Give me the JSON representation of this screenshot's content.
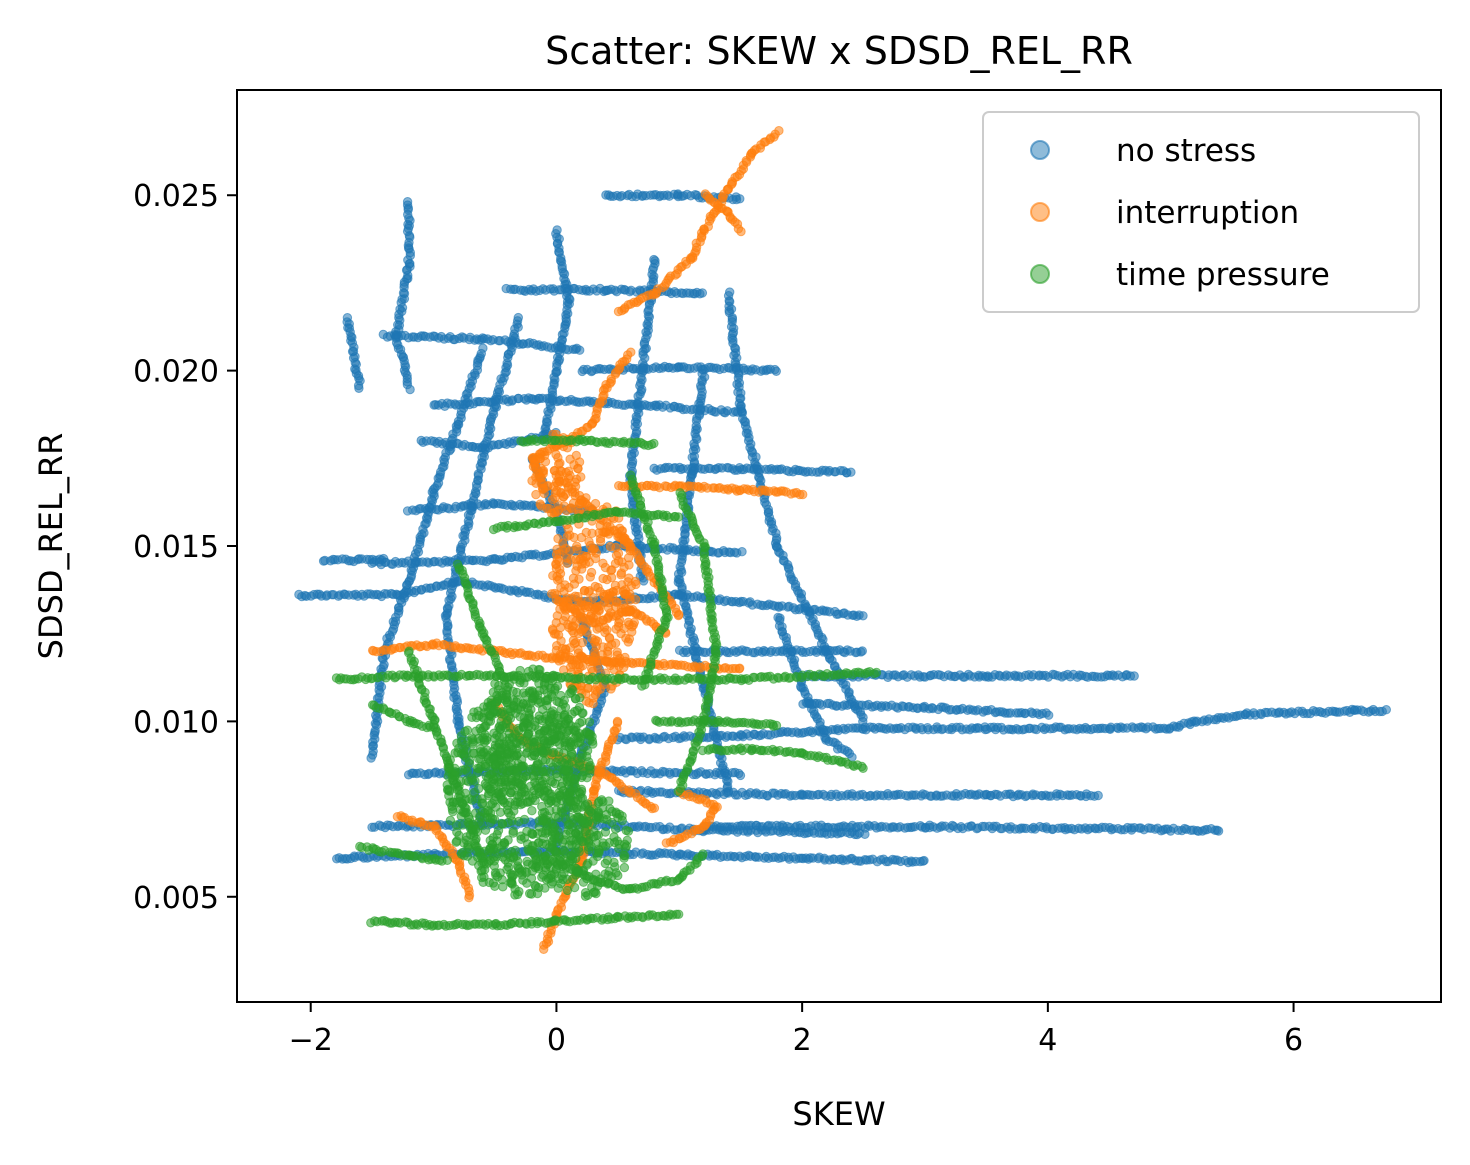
{
  "chart_data": {
    "type": "scatter",
    "title": "Scatter: SKEW x SDSD_REL_RR",
    "xlabel": "SKEW",
    "ylabel": "SDSD_REL_RR",
    "xlim": [
      -2.6,
      7.2
    ],
    "ylim": [
      0.002,
      0.028
    ],
    "x_ticks": [
      -2,
      0,
      2,
      4,
      6
    ],
    "x_tick_labels": [
      "−2",
      "0",
      "2",
      "4",
      "6"
    ],
    "y_ticks": [
      0.005,
      0.01,
      0.015,
      0.02,
      0.025
    ],
    "y_tick_labels": [
      "0.005",
      "0.010",
      "0.015",
      "0.020",
      "0.025"
    ],
    "grid": false,
    "legend_position": "top-right",
    "series": [
      {
        "name": "no stress",
        "color": "#1f77b4",
        "segments": [
          [
            [
              -2.1,
              0.0136
            ],
            [
              -1.3,
              0.0136
            ],
            [
              -0.8,
              0.014
            ],
            [
              0.2,
              0.0134
            ],
            [
              1.0,
              0.0136
            ],
            [
              2.5,
              0.013
            ]
          ],
          [
            [
              -1.5,
              0.0145
            ],
            [
              -0.5,
              0.0146
            ],
            [
              0.5,
              0.015
            ],
            [
              1.5,
              0.0148
            ]
          ],
          [
            [
              -1.9,
              0.0146
            ],
            [
              -1.4,
              0.0146
            ]
          ],
          [
            [
              -1.8,
              0.0061
            ],
            [
              -1.0,
              0.0062
            ],
            [
              0.0,
              0.0063
            ],
            [
              1.0,
              0.0062
            ],
            [
              2.0,
              0.0061
            ],
            [
              3.0,
              0.006
            ]
          ],
          [
            [
              -1.5,
              0.007
            ],
            [
              0.0,
              0.0071
            ],
            [
              1.2,
              0.0069
            ],
            [
              2.5,
              0.0068
            ]
          ],
          [
            [
              -1.2,
              0.0085
            ],
            [
              0.0,
              0.0086
            ],
            [
              1.5,
              0.0085
            ]
          ],
          [
            [
              0.5,
              0.008
            ],
            [
              2.0,
              0.0079
            ],
            [
              3.5,
              0.0079
            ],
            [
              4.4,
              0.0079
            ]
          ],
          [
            [
              1.2,
              0.007
            ],
            [
              3.0,
              0.007
            ],
            [
              5.4,
              0.0069
            ]
          ],
          [
            [
              0.5,
              0.0095
            ],
            [
              1.5,
              0.0096
            ],
            [
              2.5,
              0.0098
            ]
          ],
          [
            [
              2.0,
              0.0105
            ],
            [
              3.0,
              0.0104
            ],
            [
              4.0,
              0.0102
            ]
          ],
          [
            [
              2.5,
              0.0098
            ],
            [
              3.5,
              0.0098
            ],
            [
              4.5,
              0.0098
            ],
            [
              5.0,
              0.0098
            ],
            [
              5.2,
              0.01
            ],
            [
              5.6,
              0.0102
            ],
            [
              6.5,
              0.0103
            ],
            [
              6.75,
              0.0103
            ]
          ],
          [
            [
              2.0,
              0.0113
            ],
            [
              3.5,
              0.0113
            ],
            [
              4.7,
              0.0113
            ]
          ],
          [
            [
              1.0,
              0.012
            ],
            [
              2.5,
              0.012
            ]
          ],
          [
            [
              -1.4,
              0.021
            ],
            [
              -0.6,
              0.0209
            ],
            [
              0.2,
              0.0206
            ]
          ],
          [
            [
              -0.4,
              0.0223
            ],
            [
              0.4,
              0.0223
            ],
            [
              1.2,
              0.0222
            ]
          ],
          [
            [
              0.4,
              0.025
            ],
            [
              1.0,
              0.025
            ],
            [
              1.5,
              0.0249
            ]
          ],
          [
            [
              0.2,
              0.02
            ],
            [
              1.0,
              0.0201
            ],
            [
              1.8,
              0.02
            ]
          ],
          [
            [
              -1.0,
              0.019
            ],
            [
              -0.2,
              0.0192
            ],
            [
              0.8,
              0.019
            ],
            [
              1.5,
              0.0188
            ]
          ],
          [
            [
              0.8,
              0.0172
            ],
            [
              1.5,
              0.0172
            ],
            [
              2.4,
              0.0171
            ]
          ],
          [
            [
              -1.2,
              0.016
            ],
            [
              -0.5,
              0.0162
            ],
            [
              0.3,
              0.016
            ]
          ],
          [
            [
              -1.1,
              0.018
            ],
            [
              -0.6,
              0.0178
            ],
            [
              0.0,
              0.0182
            ]
          ],
          [
            [
              -0.6,
              0.0206
            ],
            [
              -0.8,
              0.0185
            ],
            [
              -1.0,
              0.0165
            ],
            [
              -1.2,
              0.014
            ],
            [
              -1.4,
              0.012
            ],
            [
              -1.5,
              0.009
            ]
          ],
          [
            [
              -0.3,
              0.0215
            ],
            [
              -0.5,
              0.019
            ],
            [
              -0.7,
              0.016
            ],
            [
              -0.9,
              0.013
            ],
            [
              -0.8,
              0.01
            ],
            [
              -0.6,
              0.007
            ]
          ],
          [
            [
              1.2,
              0.02
            ],
            [
              1.1,
              0.017
            ],
            [
              1.0,
              0.014
            ],
            [
              1.2,
              0.011
            ],
            [
              1.4,
              0.008
            ]
          ],
          [
            [
              1.4,
              0.0222
            ],
            [
              1.5,
              0.019
            ],
            [
              1.8,
              0.015
            ],
            [
              2.2,
              0.012
            ],
            [
              2.5,
              0.01
            ]
          ],
          [
            [
              0.8,
              0.0232
            ],
            [
              0.7,
              0.02
            ],
            [
              0.6,
              0.017
            ],
            [
              0.7,
              0.014
            ]
          ],
          [
            [
              -1.2,
              0.0248
            ],
            [
              -1.2,
              0.023
            ],
            [
              -1.3,
              0.021
            ],
            [
              -1.2,
              0.0195
            ]
          ],
          [
            [
              -1.7,
              0.0215
            ],
            [
              -1.6,
              0.0195
            ]
          ],
          [
            [
              0.0,
              0.024
            ],
            [
              0.1,
              0.022
            ],
            [
              0.0,
              0.02
            ],
            [
              -0.1,
              0.018
            ]
          ],
          [
            [
              1.8,
              0.013
            ],
            [
              2.0,
              0.011
            ],
            [
              2.2,
              0.0095
            ],
            [
              2.4,
              0.009
            ]
          ],
          [
            [
              0.2,
              0.013
            ],
            [
              0.4,
              0.011
            ],
            [
              0.2,
              0.009
            ],
            [
              0.0,
              0.0065
            ]
          ],
          [
            [
              -0.2,
              0.0175
            ],
            [
              0.0,
              0.016
            ],
            [
              0.1,
              0.0145
            ]
          ]
        ]
      },
      {
        "name": "interruption",
        "color": "#ff7f0e",
        "segments": [
          [
            [
              0.5,
              0.0217
            ],
            [
              0.8,
              0.0222
            ],
            [
              1.1,
              0.0232
            ],
            [
              1.2,
              0.024
            ],
            [
              1.4,
              0.0252
            ],
            [
              1.6,
              0.0262
            ],
            [
              1.8,
              0.0268
            ]
          ],
          [
            [
              1.2,
              0.025
            ],
            [
              1.4,
              0.0245
            ],
            [
              1.5,
              0.024
            ]
          ],
          [
            [
              0.6,
              0.0205
            ],
            [
              0.4,
              0.0195
            ],
            [
              0.3,
              0.0185
            ],
            [
              0.1,
              0.018
            ],
            [
              -0.2,
              0.0175
            ],
            [
              -0.1,
              0.0165
            ]
          ],
          [
            [
              0.0,
              0.017
            ],
            [
              0.3,
              0.016
            ],
            [
              0.6,
              0.015
            ],
            [
              0.8,
              0.014
            ],
            [
              1.0,
              0.013
            ]
          ],
          [
            [
              0.5,
              0.0167
            ],
            [
              1.0,
              0.0167
            ],
            [
              1.5,
              0.0166
            ],
            [
              2.0,
              0.0165
            ]
          ],
          [
            [
              -1.5,
              0.012
            ],
            [
              -1.0,
              0.0122
            ],
            [
              -0.5,
              0.012
            ],
            [
              0.0,
              0.0118
            ],
            [
              1.5,
              0.0115
            ]
          ],
          [
            [
              -1.3,
              0.0073
            ],
            [
              -1.0,
              0.007
            ],
            [
              -0.8,
              0.006
            ],
            [
              -0.7,
              0.005
            ]
          ],
          [
            [
              1.0,
              0.008
            ],
            [
              1.3,
              0.0076
            ],
            [
              1.2,
              0.007
            ],
            [
              0.9,
              0.0065
            ]
          ],
          [
            [
              -0.1,
              0.0035
            ],
            [
              0.0,
              0.0045
            ],
            [
              0.2,
              0.006
            ],
            [
              0.3,
              0.008
            ],
            [
              0.5,
              0.01
            ]
          ],
          [
            [
              -0.5,
              0.0105
            ],
            [
              -0.3,
              0.0095
            ],
            [
              0.0,
              0.009
            ],
            [
              0.4,
              0.0085
            ],
            [
              0.8,
              0.0075
            ]
          ],
          [
            [
              0.0,
              0.0135
            ],
            [
              0.3,
              0.0128
            ],
            [
              0.6,
              0.0132
            ],
            [
              0.9,
              0.0125
            ]
          ]
        ],
        "clusters": [
          {
            "cx": 0.3,
            "cy": 0.0135,
            "rx": 0.35,
            "ry": 0.003
          },
          {
            "cx": 0.0,
            "cy": 0.017,
            "rx": 0.2,
            "ry": 0.0012
          }
        ]
      },
      {
        "name": "time pressure",
        "color": "#2ca02c",
        "segments": [
          [
            [
              -1.8,
              0.0112
            ],
            [
              -1.2,
              0.0113
            ],
            [
              -0.5,
              0.0113
            ],
            [
              0.5,
              0.0112
            ],
            [
              1.5,
              0.0112
            ],
            [
              2.6,
              0.0114
            ]
          ],
          [
            [
              -1.5,
              0.0043
            ],
            [
              -1.0,
              0.0042
            ],
            [
              -0.5,
              0.0042
            ],
            [
              0.0,
              0.0043
            ],
            [
              0.5,
              0.0044
            ],
            [
              1.0,
              0.0045
            ]
          ],
          [
            [
              -0.3,
              0.018
            ],
            [
              0.2,
              0.018
            ],
            [
              0.8,
              0.0179
            ]
          ],
          [
            [
              -0.5,
              0.0155
            ],
            [
              0.0,
              0.0157
            ],
            [
              0.5,
              0.016
            ],
            [
              1.0,
              0.0158
            ]
          ],
          [
            [
              1.2,
              0.0092
            ],
            [
              1.6,
              0.0092
            ],
            [
              2.0,
              0.0091
            ],
            [
              2.5,
              0.0087
            ]
          ],
          [
            [
              0.8,
              0.01
            ],
            [
              1.3,
              0.01
            ],
            [
              1.8,
              0.0099
            ]
          ],
          [
            [
              1.0,
              0.0165
            ],
            [
              1.2,
              0.015
            ],
            [
              1.3,
              0.012
            ],
            [
              1.2,
              0.01
            ],
            [
              1.0,
              0.008
            ]
          ],
          [
            [
              0.6,
              0.017
            ],
            [
              0.8,
              0.015
            ],
            [
              0.9,
              0.013
            ],
            [
              0.7,
              0.011
            ]
          ],
          [
            [
              -1.2,
              0.012
            ],
            [
              -1.0,
              0.01
            ],
            [
              -0.8,
              0.008
            ],
            [
              -0.6,
              0.006
            ]
          ],
          [
            [
              -0.8,
              0.0145
            ],
            [
              -0.6,
              0.0125
            ],
            [
              -0.4,
              0.011
            ]
          ],
          [
            [
              0.0,
              0.006
            ],
            [
              0.3,
              0.0055
            ],
            [
              0.6,
              0.0052
            ],
            [
              1.0,
              0.0055
            ],
            [
              1.2,
              0.0062
            ]
          ],
          [
            [
              -1.6,
              0.0064
            ],
            [
              -1.2,
              0.0062
            ],
            [
              -0.9,
              0.006
            ]
          ],
          [
            [
              -1.5,
              0.0105
            ],
            [
              -1.2,
              0.01
            ],
            [
              -1.0,
              0.0098
            ]
          ]
        ],
        "clusters": [
          {
            "cx": -0.3,
            "cy": 0.008,
            "rx": 0.6,
            "ry": 0.003
          },
          {
            "cx": -0.2,
            "cy": 0.0095,
            "rx": 0.5,
            "ry": 0.002
          },
          {
            "cx": 0.2,
            "cy": 0.0065,
            "rx": 0.4,
            "ry": 0.0015
          }
        ]
      }
    ]
  }
}
